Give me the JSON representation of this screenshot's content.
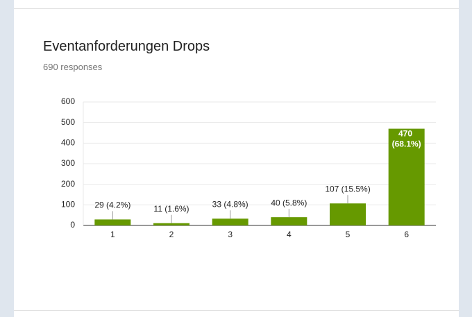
{
  "chart_data": {
    "type": "bar",
    "title": "Eventanforderungen Drops",
    "subtitle": "690 responses",
    "categories": [
      "1",
      "2",
      "3",
      "4",
      "5",
      "6"
    ],
    "values": [
      29,
      11,
      33,
      40,
      107,
      470
    ],
    "value_labels": [
      "29 (4.2%)",
      "11 (1.6%)",
      "33 (4.8%)",
      "40 (5.8%)",
      "107 (15.5%)",
      "470 (68.1%)"
    ],
    "color": "#669900",
    "ylim": [
      0,
      600
    ],
    "yticks": [
      0,
      100,
      200,
      300,
      400,
      500,
      600
    ],
    "grid": true
  }
}
